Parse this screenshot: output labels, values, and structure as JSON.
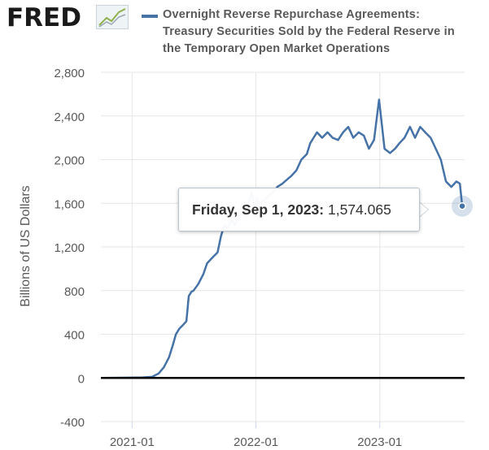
{
  "header": {
    "logo_text": "FRED",
    "logo_icon": "line-chart-icon",
    "title_lines": [
      "Overnight Reverse Repurchase Agreements:",
      "Treasury Securities Sold by the Federal Reserve in",
      "the Temporary Open Market Operations"
    ]
  },
  "colors": {
    "series": "#4572a7",
    "zero_line": "#000000",
    "grid": "#e6e6e6",
    "background": "#ffffff"
  },
  "tooltip": {
    "date_label": "Friday, Sep 1, 2023:",
    "value_label": "1,574.065"
  },
  "chart_data": {
    "type": "line",
    "ylabel": "Billions of US Dollars",
    "ylim": [
      -400,
      2800
    ],
    "yticks": [
      -400,
      0,
      400,
      800,
      1200,
      1600,
      2000,
      2400,
      2800
    ],
    "ytick_labels": [
      "-400",
      "0",
      "400",
      "800",
      "1,200",
      "1,600",
      "2,000",
      "2,400",
      "2,800"
    ],
    "xlim": [
      "2020-10-01",
      "2023-09-08"
    ],
    "xtick_dates": [
      "2021-01-01",
      "2022-01-01",
      "2023-01-01"
    ],
    "xtick_labels": [
      "2021-01",
      "2022-01",
      "2023-01"
    ],
    "grid": true,
    "zero_line": true,
    "series": [
      {
        "x": [
          "2020-10-01",
          "2020-12-01",
          "2021-02-01",
          "2021-03-01",
          "2021-03-20",
          "2021-04-05",
          "2021-04-20",
          "2021-05-01",
          "2021-05-10",
          "2021-05-20",
          "2021-05-31",
          "2021-06-10",
          "2021-06-17",
          "2021-06-25",
          "2021-07-01",
          "2021-07-15",
          "2021-07-30",
          "2021-08-10",
          "2021-08-25",
          "2021-09-10",
          "2021-09-20",
          "2021-09-30",
          "2021-10-10",
          "2021-10-20",
          "2021-10-31",
          "2021-11-15",
          "2021-11-30",
          "2021-12-10",
          "2021-12-20",
          "2021-12-31",
          "2022-01-03",
          "2022-01-10",
          "2022-01-20",
          "2022-02-01",
          "2022-02-20",
          "2022-03-05",
          "2022-03-20",
          "2022-03-31",
          "2022-04-15",
          "2022-04-30",
          "2022-05-15",
          "2022-05-31",
          "2022-06-10",
          "2022-06-20",
          "2022-06-30",
          "2022-07-15",
          "2022-07-31",
          "2022-08-15",
          "2022-08-31",
          "2022-09-15",
          "2022-09-30",
          "2022-10-15",
          "2022-10-31",
          "2022-11-15",
          "2022-11-30",
          "2022-12-15",
          "2022-12-30",
          "2023-01-15",
          "2023-01-31",
          "2023-02-15",
          "2023-02-28",
          "2023-03-15",
          "2023-03-31",
          "2023-04-15",
          "2023-04-30",
          "2023-05-15",
          "2023-05-31",
          "2023-06-15",
          "2023-06-30",
          "2023-07-15",
          "2023-07-31",
          "2023-08-15",
          "2023-08-25",
          "2023-09-01"
        ],
        "values": [
          0,
          2,
          5,
          10,
          40,
          100,
          190,
          300,
          400,
          450,
          485,
          520,
          750,
          790,
          800,
          860,
          950,
          1050,
          1100,
          1150,
          1300,
          1400,
          1370,
          1450,
          1400,
          1500,
          1500,
          1600,
          1700,
          1500,
          1650,
          1600,
          1620,
          1650,
          1700,
          1750,
          1780,
          1810,
          1850,
          1900,
          2000,
          2050,
          2150,
          2200,
          2250,
          2200,
          2250,
          2200,
          2180,
          2250,
          2300,
          2200,
          2250,
          2220,
          2100,
          2180,
          2550,
          2100,
          2060,
          2100,
          2150,
          2200,
          2300,
          2200,
          2300,
          2250,
          2200,
          2100,
          2000,
          1800,
          1750,
          1800,
          1780,
          1574.065
        ]
      }
    ]
  }
}
